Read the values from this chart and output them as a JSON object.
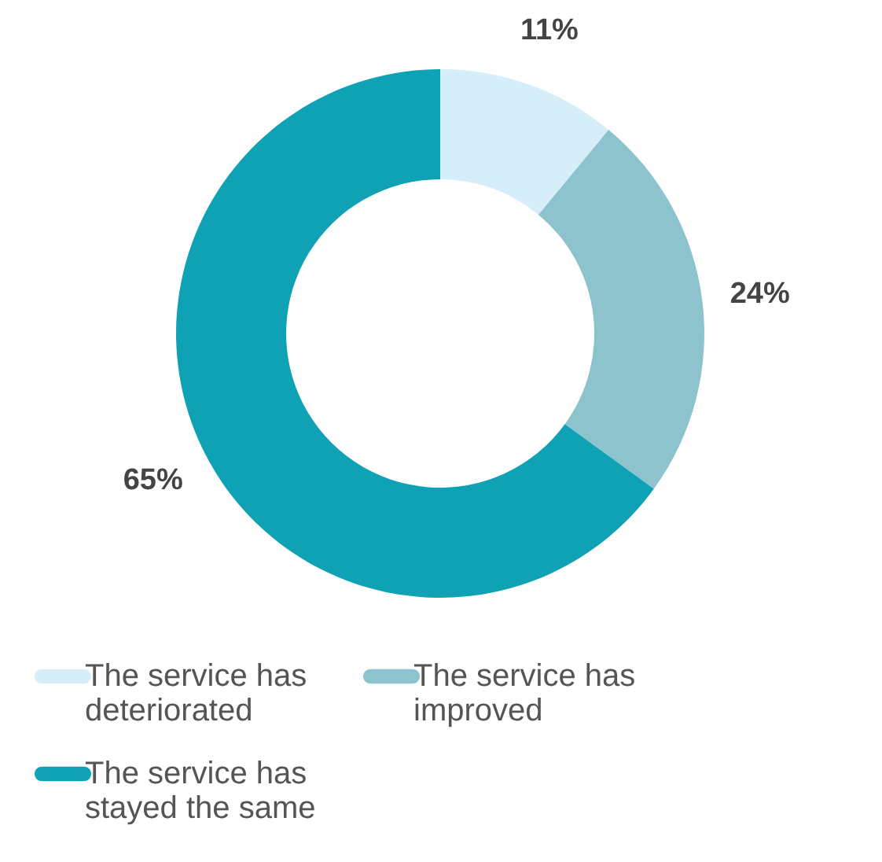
{
  "chart_data": {
    "type": "donut",
    "categories": [
      "The service has deteriorated",
      "The service has improved",
      "The service has stayed the same"
    ],
    "values": [
      11,
      24,
      65
    ],
    "colors": [
      "#d6eef9",
      "#8cc3cc",
      "#0ea2b4"
    ],
    "value_labels": [
      "11%",
      "24%",
      "65%"
    ],
    "legend": "bottom"
  }
}
